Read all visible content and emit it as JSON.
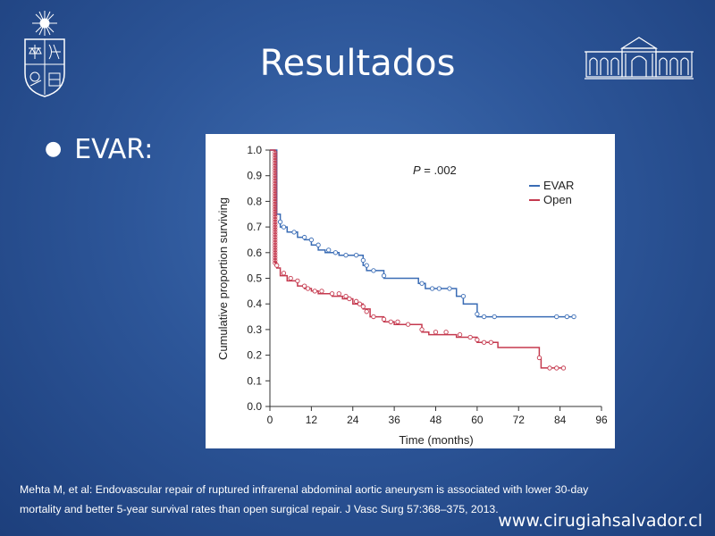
{
  "slide": {
    "title": "Resultados",
    "bullet": "EVAR:",
    "citation_line1": "Mehta M, et al: Endovascular repair of ruptured infrarenal abdominal aortic aneurysm is associated with lower 30-day",
    "citation_line2": "mortality and better 5-year survival rates than open surgical repair. J Vasc Surg 57:368–375, 2013.",
    "website": "www.cirugiahsalvador.cl"
  },
  "colors": {
    "evar": "#3a6cb5",
    "open": "#c53a4f",
    "axis": "#333333"
  },
  "chart_data": {
    "type": "line",
    "xlabel": "Time (months)",
    "ylabel": "Cumulative proportion surviving",
    "annotation_p_label": "P",
    "annotation_p_value": " = .002",
    "xlim": [
      0,
      96
    ],
    "ylim": [
      0,
      1.0
    ],
    "x_ticks": [
      0,
      12,
      24,
      36,
      48,
      60,
      72,
      84,
      96
    ],
    "y_ticks": [
      0.0,
      0.1,
      0.2,
      0.3,
      0.4,
      0.5,
      0.6,
      0.7,
      0.8,
      0.9,
      1.0
    ],
    "legend_position": "top-right",
    "series": [
      {
        "name": "EVAR",
        "color_key": "evar",
        "x": [
          0,
          2,
          2,
          3,
          3,
          5,
          5,
          8,
          8,
          10,
          10,
          12,
          12,
          14,
          14,
          16,
          16,
          20,
          20,
          27,
          27,
          28,
          28,
          33,
          33,
          43,
          43,
          45,
          45,
          54,
          54,
          56,
          56,
          60,
          60,
          88
        ],
        "y": [
          1.0,
          1.0,
          0.75,
          0.75,
          0.7,
          0.7,
          0.68,
          0.68,
          0.66,
          0.66,
          0.65,
          0.65,
          0.63,
          0.63,
          0.61,
          0.61,
          0.6,
          0.6,
          0.59,
          0.59,
          0.55,
          0.55,
          0.53,
          0.53,
          0.5,
          0.5,
          0.48,
          0.48,
          0.46,
          0.46,
          0.43,
          0.43,
          0.4,
          0.4,
          0.35,
          0.35
        ],
        "censored_x": [
          3,
          4,
          7,
          10,
          12,
          14,
          17,
          19,
          22,
          25,
          27,
          28,
          30,
          33,
          44,
          47,
          49,
          52,
          56,
          60,
          62,
          65,
          83,
          86,
          88
        ],
        "censored_y": [
          0.72,
          0.7,
          0.68,
          0.66,
          0.65,
          0.63,
          0.61,
          0.6,
          0.59,
          0.59,
          0.57,
          0.55,
          0.53,
          0.51,
          0.48,
          0.46,
          0.46,
          0.46,
          0.43,
          0.36,
          0.35,
          0.35,
          0.35,
          0.35,
          0.35
        ]
      },
      {
        "name": "Open",
        "color_key": "open",
        "x": [
          0,
          1.5,
          1.5,
          2,
          2,
          3,
          3,
          5,
          5,
          8,
          8,
          10,
          10,
          12,
          12,
          14,
          14,
          18,
          18,
          21,
          21,
          24,
          24,
          27,
          27,
          29,
          29,
          33,
          33,
          36,
          36,
          44,
          44,
          46,
          46,
          54,
          54,
          60,
          60,
          66,
          66,
          78,
          78,
          78.5,
          78.5,
          85
        ],
        "y": [
          1.0,
          1.0,
          0.56,
          0.56,
          0.54,
          0.54,
          0.51,
          0.51,
          0.49,
          0.49,
          0.47,
          0.47,
          0.46,
          0.46,
          0.45,
          0.45,
          0.44,
          0.44,
          0.43,
          0.43,
          0.42,
          0.42,
          0.4,
          0.4,
          0.38,
          0.38,
          0.35,
          0.35,
          0.33,
          0.33,
          0.32,
          0.32,
          0.29,
          0.29,
          0.28,
          0.28,
          0.27,
          0.27,
          0.25,
          0.25,
          0.23,
          0.23,
          0.19,
          0.19,
          0.15,
          0.15
        ],
        "censored_x": [
          2,
          4,
          6,
          8,
          10,
          11,
          13,
          15,
          18,
          20,
          22,
          23,
          25,
          26,
          27,
          28,
          30,
          33,
          35,
          37,
          40,
          44,
          48,
          51,
          55,
          58,
          60,
          62,
          64,
          78,
          81,
          83,
          85
        ],
        "censored_y": [
          0.55,
          0.52,
          0.5,
          0.49,
          0.47,
          0.46,
          0.45,
          0.45,
          0.44,
          0.44,
          0.43,
          0.42,
          0.41,
          0.4,
          0.39,
          0.37,
          0.35,
          0.34,
          0.33,
          0.33,
          0.32,
          0.3,
          0.29,
          0.29,
          0.28,
          0.27,
          0.26,
          0.25,
          0.25,
          0.19,
          0.15,
          0.15,
          0.15
        ],
        "spike_x": 1.5,
        "spike_y": [
          0.56,
          0.57,
          0.58,
          0.59,
          0.6,
          0.61,
          0.62,
          0.63,
          0.64,
          0.65,
          0.66,
          0.67,
          0.68,
          0.69,
          0.7,
          0.71,
          0.72,
          0.73,
          0.74,
          0.75,
          0.76,
          0.77,
          0.78,
          0.79,
          0.8,
          0.81,
          0.82,
          0.83,
          0.84,
          0.85,
          0.86,
          0.87,
          0.88,
          0.89,
          0.9,
          0.91,
          0.92,
          0.93,
          0.94,
          0.95,
          0.96,
          0.97,
          0.98,
          0.99
        ]
      }
    ]
  }
}
